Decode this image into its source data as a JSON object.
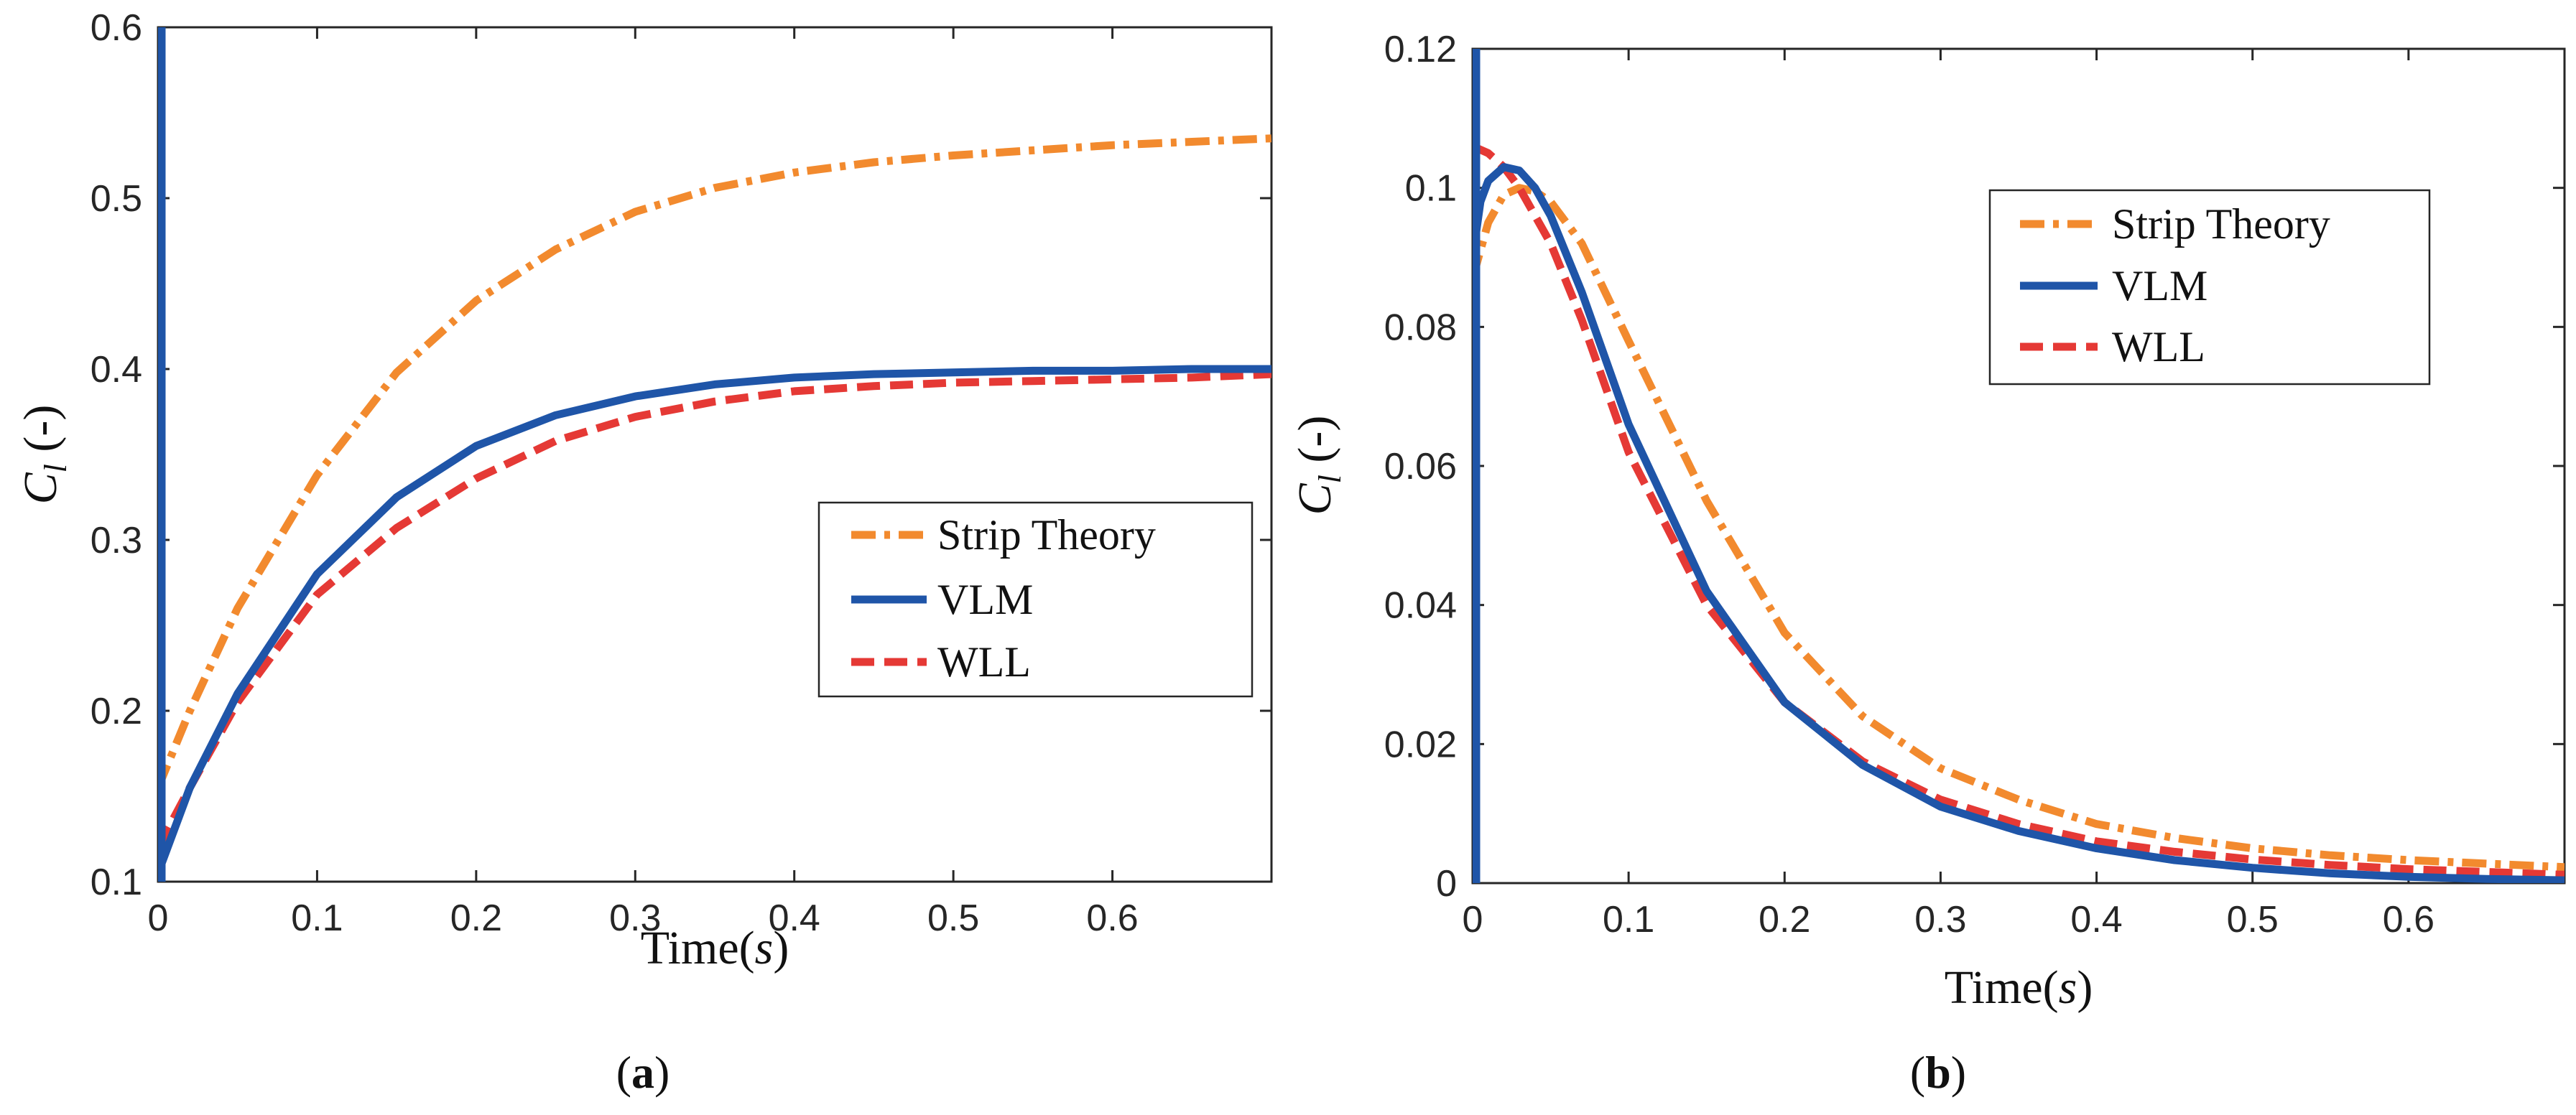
{
  "chart_data": [
    {
      "type": "line",
      "panel_label": "(a)",
      "xlabel": "Time(s)",
      "ylabel": "C_l (-)",
      "xlim": [
        0,
        0.7
      ],
      "ylim": [
        0.1,
        0.6
      ],
      "x_ticks": [
        "0",
        "0.1",
        "0.2",
        "0.3",
        "0.4",
        "0.5",
        "0.6"
      ],
      "y_ticks": [
        "0.1",
        "0.2",
        "0.3",
        "0.4",
        "0.5",
        "0.6"
      ],
      "grid": false,
      "legend_position": "right",
      "series": [
        {
          "name": "Strip Theory",
          "color": "#F28A2E",
          "style": "dash-dot",
          "x": [
            0,
            0.02,
            0.05,
            0.1,
            0.15,
            0.2,
            0.25,
            0.3,
            0.35,
            0.4,
            0.45,
            0.5,
            0.55,
            0.6,
            0.65,
            0.7
          ],
          "y": [
            0.155,
            0.2,
            0.26,
            0.338,
            0.398,
            0.44,
            0.47,
            0.492,
            0.506,
            0.515,
            0.521,
            0.525,
            0.528,
            0.531,
            0.533,
            0.535
          ]
        },
        {
          "name": "VLM",
          "color": "#1F55A8",
          "style": "solid",
          "spike": true,
          "x": [
            0,
            0.02,
            0.05,
            0.1,
            0.15,
            0.2,
            0.25,
            0.3,
            0.35,
            0.4,
            0.45,
            0.5,
            0.55,
            0.6,
            0.65,
            0.7
          ],
          "y": [
            0.105,
            0.155,
            0.21,
            0.28,
            0.325,
            0.355,
            0.373,
            0.384,
            0.391,
            0.395,
            0.397,
            0.398,
            0.399,
            0.399,
            0.4,
            0.4
          ]
        },
        {
          "name": "WLL",
          "color": "#E53935",
          "style": "dashed",
          "x": [
            0,
            0.02,
            0.05,
            0.1,
            0.15,
            0.2,
            0.25,
            0.3,
            0.35,
            0.4,
            0.45,
            0.5,
            0.55,
            0.6,
            0.65,
            0.7
          ],
          "y": [
            0.12,
            0.155,
            0.205,
            0.268,
            0.307,
            0.336,
            0.358,
            0.372,
            0.381,
            0.387,
            0.39,
            0.392,
            0.393,
            0.394,
            0.395,
            0.397
          ]
        }
      ]
    },
    {
      "type": "line",
      "panel_label": "(b)",
      "xlabel": "Time(s)",
      "ylabel": "C_l (-)",
      "xlim": [
        0,
        0.7
      ],
      "ylim": [
        0,
        0.12
      ],
      "x_ticks": [
        "0",
        "0.1",
        "0.2",
        "0.3",
        "0.4",
        "0.5",
        "0.6"
      ],
      "y_ticks": [
        "0",
        "0.02",
        "0.04",
        "0.06",
        "0.08",
        "0.1",
        "0.12"
      ],
      "grid": false,
      "legend_position": "top-right",
      "series": [
        {
          "name": "Strip Theory",
          "color": "#F28A2E",
          "style": "dash-dot",
          "x": [
            0,
            0.01,
            0.02,
            0.03,
            0.04,
            0.05,
            0.07,
            0.1,
            0.15,
            0.2,
            0.25,
            0.3,
            0.35,
            0.4,
            0.45,
            0.5,
            0.55,
            0.6,
            0.65,
            0.7
          ],
          "y": [
            0.087,
            0.095,
            0.099,
            0.1,
            0.0995,
            0.098,
            0.092,
            0.078,
            0.055,
            0.036,
            0.024,
            0.0165,
            0.012,
            0.0085,
            0.0065,
            0.005,
            0.004,
            0.0033,
            0.0028,
            0.0023
          ]
        },
        {
          "name": "VLM",
          "color": "#1F55A8",
          "style": "solid",
          "spike": true,
          "x": [
            0,
            0.005,
            0.01,
            0.02,
            0.03,
            0.04,
            0.05,
            0.07,
            0.1,
            0.15,
            0.2,
            0.25,
            0.3,
            0.35,
            0.4,
            0.45,
            0.5,
            0.55,
            0.6,
            0.65,
            0.7
          ],
          "y": [
            0.09,
            0.098,
            0.101,
            0.103,
            0.1025,
            0.1,
            0.096,
            0.085,
            0.066,
            0.042,
            0.026,
            0.017,
            0.011,
            0.0075,
            0.005,
            0.0033,
            0.0022,
            0.0014,
            0.0009,
            0.0006,
            0.0004
          ]
        },
        {
          "name": "WLL",
          "color": "#E53935",
          "style": "dashed",
          "x": [
            0,
            0.01,
            0.02,
            0.03,
            0.05,
            0.07,
            0.1,
            0.15,
            0.2,
            0.25,
            0.3,
            0.35,
            0.4,
            0.45,
            0.5,
            0.55,
            0.6,
            0.65,
            0.7
          ],
          "y": [
            0.106,
            0.105,
            0.103,
            0.1,
            0.092,
            0.081,
            0.062,
            0.04,
            0.026,
            0.0175,
            0.012,
            0.0085,
            0.006,
            0.0045,
            0.0034,
            0.0026,
            0.002,
            0.0016,
            0.0012
          ]
        }
      ]
    }
  ]
}
